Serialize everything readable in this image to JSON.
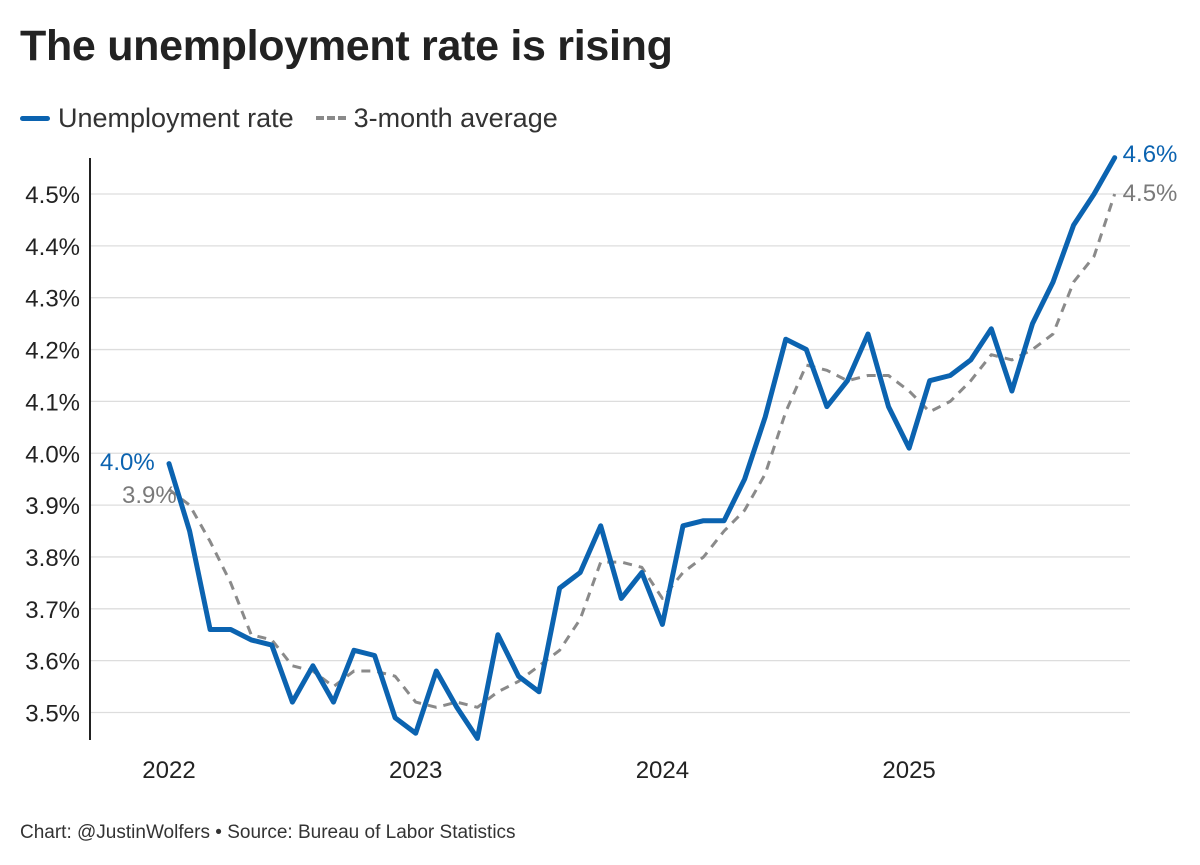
{
  "colors": {
    "series_line": "#0b63b0",
    "avg_line": "#8a8a8a",
    "grid": "#dddddd",
    "axis": "#222222",
    "label_blue": "#0b63b0",
    "label_gray": "#7a7a7a"
  },
  "footer": {
    "credit": "Chart: @JustinWolfers",
    "separator": "•",
    "source": "Source: Bureau of Labor Statistics"
  },
  "chart_data": {
    "type": "line",
    "title": "The unemployment rate is rising",
    "xlabel": "",
    "ylabel": "",
    "ylim": [
      3.45,
      4.57
    ],
    "xlim": [
      2022,
      2025.83
    ],
    "grid": true,
    "legend_position": "top-left",
    "yticks": [
      3.5,
      3.6,
      3.7,
      3.8,
      3.9,
      4.0,
      4.1,
      4.2,
      4.3,
      4.4,
      4.5
    ],
    "ytick_labels": [
      "3.5%",
      "3.6%",
      "3.7%",
      "3.8%",
      "3.9%",
      "4.0%",
      "4.1%",
      "4.2%",
      "4.3%",
      "4.4%",
      "4.5%"
    ],
    "xticks": [
      2022,
      2023,
      2024,
      2025
    ],
    "xtick_labels": [
      "2022",
      "2023",
      "2024",
      "2025"
    ],
    "x_start": 2022.0,
    "x_step_months": 1,
    "series": [
      {
        "name": "Unemployment rate",
        "style": "solid",
        "values": [
          3.98,
          3.85,
          3.66,
          3.66,
          3.64,
          3.63,
          3.52,
          3.59,
          3.52,
          3.62,
          3.61,
          3.49,
          3.46,
          3.58,
          3.51,
          3.45,
          3.65,
          3.57,
          3.54,
          3.74,
          3.77,
          3.86,
          3.72,
          3.77,
          3.67,
          3.86,
          3.87,
          3.87,
          3.95,
          4.07,
          4.22,
          4.2,
          4.09,
          4.14,
          4.23,
          4.09,
          4.01,
          4.14,
          4.15,
          4.18,
          4.24,
          4.12,
          4.25,
          4.33,
          4.44,
          4.5,
          4.57
        ],
        "end_label": "4.6%",
        "start_label": "4.0%"
      },
      {
        "name": "3-month average",
        "style": "dashed",
        "values": [
          3.93,
          3.9,
          3.83,
          3.75,
          3.65,
          3.64,
          3.59,
          3.58,
          3.55,
          3.58,
          3.58,
          3.57,
          3.52,
          3.51,
          3.52,
          3.51,
          3.54,
          3.56,
          3.59,
          3.62,
          3.68,
          3.79,
          3.79,
          3.78,
          3.72,
          3.77,
          3.8,
          3.85,
          3.89,
          3.96,
          4.08,
          4.17,
          4.16,
          4.14,
          4.15,
          4.15,
          4.12,
          4.08,
          4.1,
          4.14,
          4.19,
          4.18,
          4.2,
          4.23,
          4.33,
          4.38,
          4.5
        ],
        "end_label": "4.5%",
        "start_label": "3.9%"
      }
    ]
  }
}
